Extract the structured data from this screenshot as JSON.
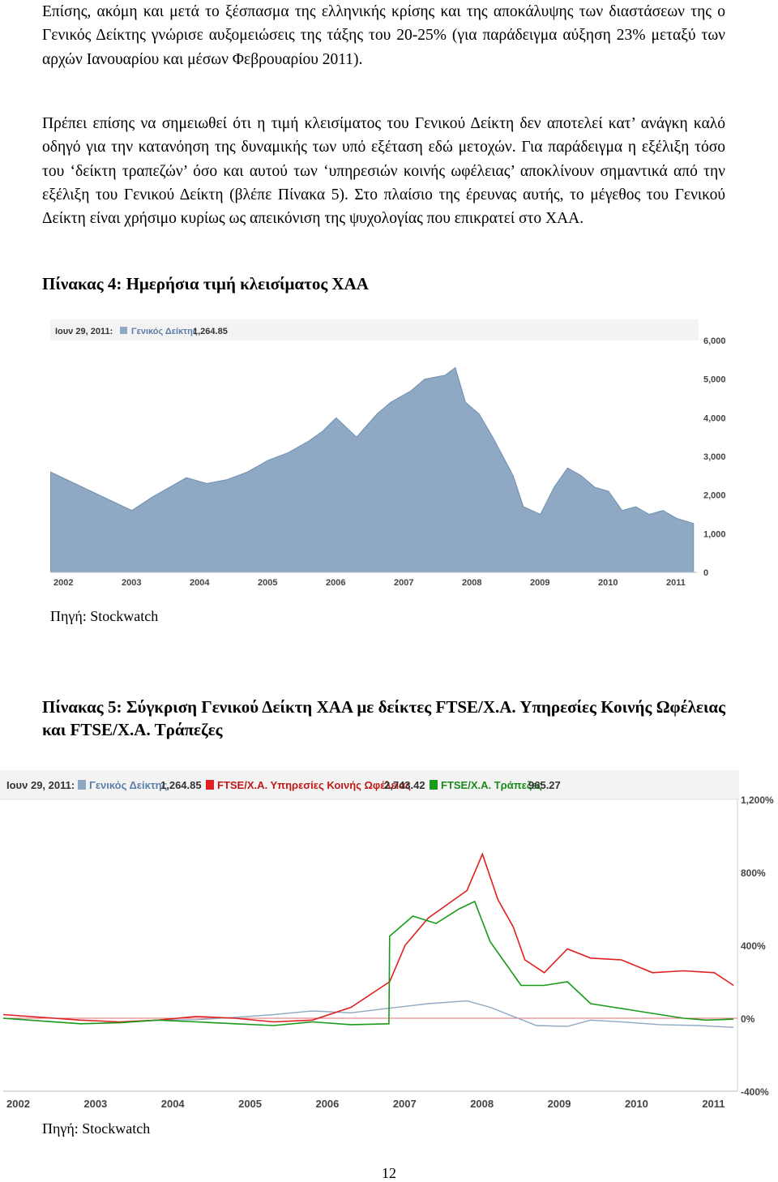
{
  "paragraphs": [
    "Επίσης, ακόμη και μετά το ξέσπασμα της ελληνικής κρίσης και της αποκάλυψης των διαστάσεων της ο Γενικός Δείκτης γνώρισε αυξομειώσεις της τάξης του 20-25% (για παράδειγμα αύξηση 23% μεταξύ των αρχών Ιανουαρίου και μέσων Φεβρουαρίου 2011).",
    "Πρέπει επίσης να σημειωθεί ότι η τιμή κλεισίματος του Γενικού Δείκτη δεν αποτελεί κατ’ ανάγκη καλό οδηγό για την κατανόηση της δυναμικής των υπό εξέταση εδώ μετοχών. Για παράδειγμα η εξέλιξη τόσο του ‘δείκτη τραπεζών’ όσο και αυτού των ‘υπηρεσιών κοινής ωφέλειας’ αποκλίνουν σημαντικά από την εξέλιξη του Γενικού Δείκτη (βλέπε Πίνακα 5). Στο πλαίσιο της έρευνας αυτής, το μέγεθος του Γενικού Δείκτη είναι χρήσιμο κυρίως ως απεικόνιση της ψυχολογίας που επικρατεί στο ΧΑΑ."
  ],
  "table4": {
    "title": "Πίνακας 4: Ημερήσια τιμή κλεισίματος ΧΑΑ",
    "source": "Πηγή: Stockwatch",
    "date": "Ιουν 29, 2011:",
    "series_name": "Γενικός Δείκτης",
    "series_value": "1,264.85"
  },
  "table5": {
    "title": "Πίνακας 5: Σύγκριση Γενικού Δείκτη ΧΑΑ με δείκτες FTSE/Χ.Α. Υπηρεσίες Κοινής Ωφέλειας και FTSE/Χ.Α. Τράπεζες",
    "source": "Πηγή: Stockwatch",
    "date": "Ιουν 29, 2011:",
    "legend": [
      {
        "name": "Γενικός Δείκτης",
        "value": "1,264.85"
      },
      {
        "name": "FTSE/Χ.Α. Υπηρεσίες Κοινής Ωφέλειας",
        "value": "2,743.42"
      },
      {
        "name": "FTSE/Χ.Α. Τράπεζες",
        "value": "965.27"
      }
    ]
  },
  "page_number": "12",
  "chart_data": [
    {
      "type": "area",
      "title": "",
      "xlabel": "",
      "ylabel": "",
      "color": "#8fa9c4",
      "x_ticks": [
        "2002",
        "2003",
        "2004",
        "2005",
        "2006",
        "2007",
        "2008",
        "2009",
        "2010",
        "2011"
      ],
      "y_ticks": [
        "0",
        "1,000",
        "2,000",
        "3,000",
        "4,000",
        "5,000",
        "6,000"
      ],
      "ylim": [
        0,
        6000
      ],
      "xlim": [
        2002.0,
        2011.5
      ],
      "grid": false,
      "legend_position": "top-left",
      "series": [
        {
          "name": "Γενικός Δείκτης",
          "x": [
            2002.0,
            2002.3,
            2002.6,
            2002.9,
            2003.2,
            2003.5,
            2003.8,
            2004.0,
            2004.3,
            2004.6,
            2004.9,
            2005.2,
            2005.5,
            2005.8,
            2006.0,
            2006.2,
            2006.5,
            2006.8,
            2007.0,
            2007.3,
            2007.5,
            2007.8,
            2007.95,
            2008.1,
            2008.3,
            2008.5,
            2008.65,
            2008.8,
            2008.95,
            2009.2,
            2009.4,
            2009.6,
            2009.8,
            2010.0,
            2010.2,
            2010.4,
            2010.6,
            2010.8,
            2011.0,
            2011.2,
            2011.45
          ],
          "y": [
            2600,
            2350,
            2100,
            1850,
            1600,
            1950,
            2250,
            2450,
            2300,
            2400,
            2600,
            2900,
            3100,
            3400,
            3650,
            4000,
            3500,
            4100,
            4400,
            4700,
            5000,
            5100,
            5300,
            4400,
            4100,
            3500,
            3000,
            2500,
            1700,
            1500,
            2200,
            2700,
            2500,
            2200,
            2100,
            1600,
            1700,
            1500,
            1600,
            1400,
            1265
          ]
        }
      ]
    },
    {
      "type": "line",
      "title": "",
      "xlabel": "",
      "ylabel": "",
      "x_ticks": [
        "2002",
        "2003",
        "2004",
        "2005",
        "2006",
        "2007",
        "2008",
        "2009",
        "2010",
        "2011"
      ],
      "y_ticks": [
        "-400%",
        "0%",
        "400%",
        "800%",
        "1,200%"
      ],
      "ylim": [
        -400,
        1200
      ],
      "xlim": [
        2002.0,
        2011.5
      ],
      "grid": false,
      "legend_position": "top-left",
      "series": [
        {
          "name": "Γενικός Δείκτης",
          "color": "#8fa9c4",
          "x": [
            2002.0,
            2002.5,
            2003.0,
            2003.5,
            2004.0,
            2004.5,
            2005.0,
            2005.5,
            2006.0,
            2006.5,
            2007.0,
            2007.5,
            2008.0,
            2008.3,
            2008.6,
            2008.9,
            2009.3,
            2009.6,
            2010.0,
            2010.5,
            2011.0,
            2011.45
          ],
          "y": [
            0,
            -15,
            -30,
            -25,
            -10,
            -8,
            5,
            20,
            40,
            30,
            55,
            80,
            95,
            60,
            10,
            -40,
            -45,
            -10,
            -20,
            -35,
            -40,
            -50
          ]
        },
        {
          "name": "FTSE/Χ.Α. Υπηρεσίες Κοινής Ωφέλειας",
          "color": "#e02020",
          "x": [
            2002.0,
            2003.0,
            2003.5,
            2004.0,
            2004.5,
            2005.0,
            2005.5,
            2006.0,
            2006.5,
            2007.0,
            2007.2,
            2007.5,
            2007.8,
            2008.0,
            2008.2,
            2008.4,
            2008.6,
            2008.75,
            2009.0,
            2009.3,
            2009.6,
            2010.0,
            2010.4,
            2010.8,
            2011.2,
            2011.45
          ],
          "y": [
            20,
            -10,
            -20,
            -10,
            10,
            0,
            -20,
            -10,
            60,
            200,
            400,
            550,
            640,
            700,
            900,
            650,
            500,
            320,
            250,
            380,
            330,
            320,
            250,
            260,
            250,
            180
          ]
        },
        {
          "name": "FTSE/Χ.Α. Τράπεζες",
          "color": "#1a9a1a",
          "x": [
            2002.0,
            2003.0,
            2003.5,
            2004.0,
            2004.5,
            2005.0,
            2005.5,
            2006.0,
            2006.5,
            2006.99,
            2007.0,
            2007.3,
            2007.6,
            2007.9,
            2008.1,
            2008.3,
            2008.5,
            2008.7,
            2009.0,
            2009.3,
            2009.6,
            2009.9,
            2010.2,
            2010.5,
            2010.8,
            2011.1,
            2011.45
          ],
          "y": [
            0,
            -30,
            -25,
            -10,
            -20,
            -30,
            -40,
            -20,
            -35,
            -30,
            450,
            560,
            520,
            600,
            640,
            420,
            300,
            180,
            180,
            200,
            80,
            60,
            40,
            20,
            0,
            -10,
            -5
          ]
        }
      ]
    }
  ]
}
